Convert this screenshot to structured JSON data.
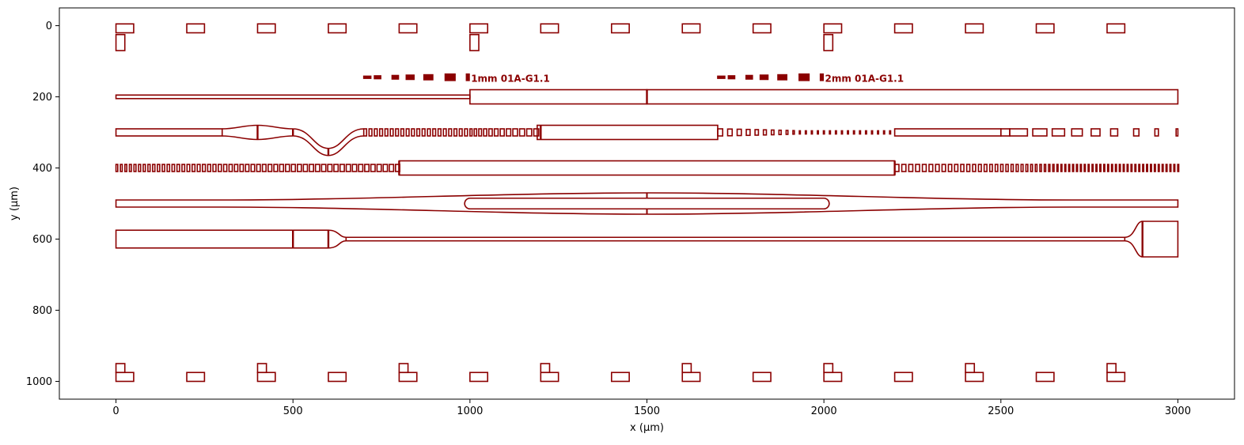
{
  "chart_data": {
    "type": "layout",
    "title": "",
    "xlabel": "x (µm)",
    "ylabel": "y (µm)",
    "xlim": [
      -160,
      3160
    ],
    "ylim": [
      1050,
      -50
    ],
    "xticks": [
      0,
      500,
      1000,
      1500,
      2000,
      2500,
      3000
    ],
    "yticks": [
      0,
      200,
      400,
      600,
      800,
      1000
    ],
    "grid": false,
    "color": "#8b0000",
    "annotations": [
      {
        "text": "1mm 01A-G1.1",
        "x": 1003,
        "y": 140
      },
      {
        "text": "2mm 01A-G1.1",
        "x": 2003,
        "y": 140
      }
    ],
    "label_markers": [
      {
        "x": [
          700,
          730,
          780,
          820,
          870,
          930,
          990
        ],
        "w": [
          20,
          18,
          18,
          22,
          25,
          28,
          8
        ],
        "h": [
          6,
          8,
          10,
          12,
          14,
          18,
          18
        ],
        "y": 145
      },
      {
        "x": [
          1700,
          1730,
          1780,
          1820,
          1870,
          1930,
          1990
        ],
        "w": [
          20,
          18,
          18,
          22,
          25,
          28,
          8
        ],
        "h": [
          6,
          8,
          10,
          12,
          14,
          18,
          18
        ],
        "y": 145
      }
    ],
    "top_marks": {
      "xs": [
        0,
        200,
        400,
        600,
        800,
        1000,
        1200,
        1400,
        1600,
        1800,
        2000,
        2200,
        2400,
        2600,
        2800
      ],
      "w": 50,
      "y0": -5,
      "y1": 20,
      "stems": [
        0,
        1000,
        2000
      ],
      "stem_y": 70,
      "stem_w": 25
    },
    "bottom_marks": {
      "xs": [
        0,
        200,
        400,
        600,
        800,
        1000,
        1200,
        1400,
        1600,
        1800,
        2000,
        2200,
        2400,
        2600,
        2800
      ],
      "w": 50,
      "y0": 975,
      "y1": 1000,
      "tabs": [
        0,
        400,
        800,
        1200,
        1600,
        2000,
        2400,
        2800
      ],
      "tab_y": 950,
      "tab_w": 25
    },
    "waveguides": [
      {
        "name": "wg-200",
        "segments": [
          [
            0,
            195,
            1000,
            205
          ],
          [
            1000,
            180,
            1500,
            220
          ],
          [
            1500,
            180,
            3000,
            220
          ]
        ]
      },
      {
        "name": "wg-300",
        "y": 300
      },
      {
        "name": "wg-400",
        "y": 400
      },
      {
        "name": "wg-500",
        "y": 500
      },
      {
        "name": "wg-600",
        "y": 600
      }
    ]
  }
}
